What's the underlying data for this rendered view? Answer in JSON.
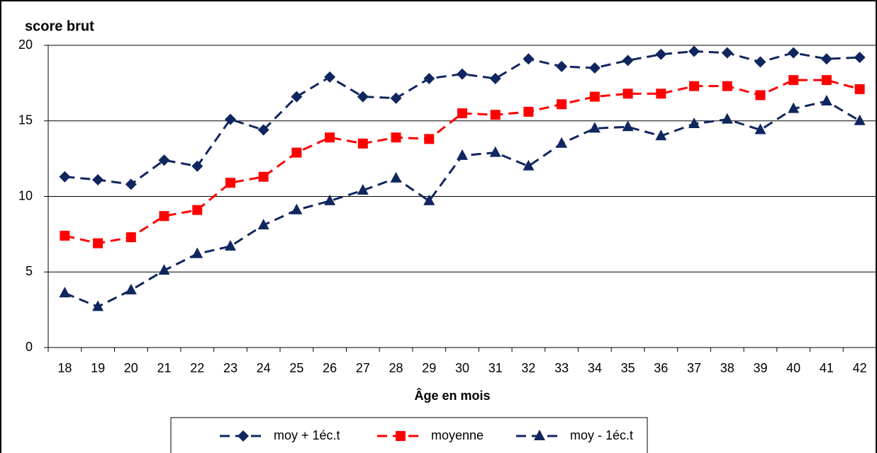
{
  "chart_data": {
    "type": "line",
    "y_label": "score brut",
    "x_label": "Âge en mois",
    "categories": [
      18,
      19,
      20,
      21,
      22,
      23,
      24,
      25,
      26,
      27,
      28,
      29,
      30,
      31,
      32,
      33,
      34,
      35,
      36,
      37,
      38,
      39,
      40,
      41,
      42
    ],
    "series": [
      {
        "name": "moy + 1éc.t",
        "color": "#10265e",
        "marker": "diamond",
        "values": [
          11.3,
          11.1,
          10.8,
          12.4,
          12.0,
          15.1,
          14.4,
          16.6,
          17.9,
          16.6,
          16.5,
          17.8,
          18.1,
          17.8,
          19.1,
          18.6,
          18.5,
          19.0,
          19.4,
          19.6,
          19.5,
          18.9,
          19.5,
          19.1,
          19.2
        ]
      },
      {
        "name": "moyenne",
        "color": "#ff0000",
        "marker": "square",
        "values": [
          7.4,
          6.9,
          7.3,
          8.7,
          9.1,
          10.9,
          11.3,
          12.9,
          13.9,
          13.5,
          13.9,
          13.8,
          15.5,
          15.4,
          15.6,
          16.1,
          16.6,
          16.8,
          16.8,
          17.3,
          17.3,
          16.7,
          17.7,
          17.7,
          17.1
        ]
      },
      {
        "name": "moy - 1éc.t",
        "color": "#10265e",
        "marker": "triangle",
        "values": [
          3.6,
          2.7,
          3.8,
          5.1,
          6.2,
          6.7,
          8.1,
          9.1,
          9.7,
          10.4,
          11.2,
          9.7,
          12.7,
          12.9,
          12.0,
          13.5,
          14.5,
          14.6,
          14.0,
          14.8,
          15.1,
          14.4,
          15.8,
          16.3,
          15.0
        ]
      }
    ],
    "ylim": [
      0,
      20
    ],
    "yticks": [
      0,
      5,
      10,
      15,
      20
    ],
    "grid": true,
    "legend": "bottom"
  }
}
